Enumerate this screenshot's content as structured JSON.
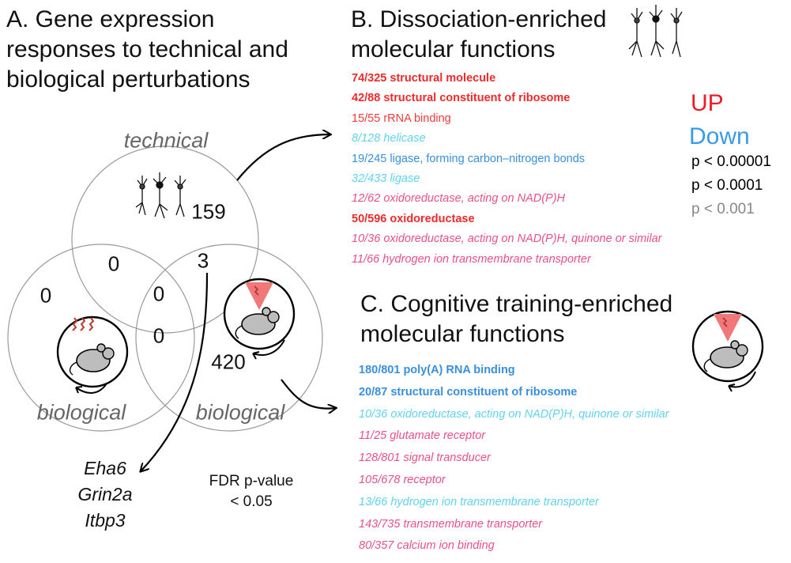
{
  "panel_a": {
    "title_lines": [
      "A. Gene expression",
      "responses to technical and",
      "biological perturbations"
    ],
    "circle_labels": {
      "technical": "technical",
      "biological_left": "biological",
      "biological_right": "biological"
    },
    "counts": {
      "technical_only": "159",
      "technical_bioleft": "0",
      "technical_bioright": "3",
      "bioleft_only": "0",
      "all_three": "0",
      "bioleft_bioright": "0",
      "bioright_only": "420"
    },
    "genes": [
      "Eha6",
      "Grin2a",
      "Itbp3"
    ],
    "fdr_note": [
      "FDR p-value",
      "< 0.05"
    ]
  },
  "panel_b": {
    "title_lines": [
      "B. Dissociation-enriched",
      "molecular functions"
    ],
    "terms": [
      {
        "text": "74/325 structural molecule",
        "dir": "up",
        "sig": "strong"
      },
      {
        "text": "42/88 structural constituent of ribosome",
        "dir": "up",
        "sig": "strong"
      },
      {
        "text": "15/55 rRNA binding",
        "dir": "up",
        "sig": "medium"
      },
      {
        "text": "8/128 helicase",
        "dir": "down",
        "sig": "weak"
      },
      {
        "text": "19/245 ligase, forming carbon–nitrogen bonds",
        "dir": "down",
        "sig": "medium"
      },
      {
        "text": "32/433 ligase",
        "dir": "down",
        "sig": "weak"
      },
      {
        "text": "12/62 oxidoreductase, acting on NAD(P)H",
        "dir": "up",
        "sig": "weak"
      },
      {
        "text": "50/596 oxidoreductase",
        "dir": "up",
        "sig": "strong"
      },
      {
        "text": "10/36 oxidoreductase, acting on NAD(P)H, quinone or similar",
        "dir": "up",
        "sig": "weak"
      },
      {
        "text": "11/66 hydrogen ion transmembrane transporter",
        "dir": "up",
        "sig": "weak"
      }
    ]
  },
  "legend": {
    "up": "UP",
    "down": "Down",
    "p_levels": [
      "p < 0.00001",
      "p < 0.0001",
      "p < 0.001"
    ]
  },
  "panel_c": {
    "title_lines": [
      "C. Cognitive training-enriched",
      "molecular functions"
    ],
    "terms": [
      {
        "text": "180/801 poly(A) RNA binding",
        "dir": "down",
        "sig": "strong"
      },
      {
        "text": "20/87 structural constituent of ribosome",
        "dir": "down",
        "sig": "strong"
      },
      {
        "text": "10/36 oxidoreductase, acting on NAD(P)H, quinone or similar",
        "dir": "down",
        "sig": "weak"
      },
      {
        "text": "11/25 glutamate receptor",
        "dir": "up",
        "sig": "weak"
      },
      {
        "text": "128/801 signal transducer",
        "dir": "up",
        "sig": "weak"
      },
      {
        "text": "105/678 receptor",
        "dir": "up",
        "sig": "weak"
      },
      {
        "text": "13/66 hydrogen ion transmembrane transporter",
        "dir": "down",
        "sig": "weak"
      },
      {
        "text": "143/735 transmembrane transporter",
        "dir": "up",
        "sig": "weak"
      },
      {
        "text": "80/357 calcium ion binding",
        "dir": "up",
        "sig": "weak"
      }
    ]
  },
  "colors": {
    "up_strong": "#ee2a2a",
    "up_medium": "#ef3b3b",
    "up_weak": "#e8508a",
    "down_strong": "#3a8fdd",
    "down_medium": "#3a8fdd",
    "down_weak": "#5fd3ee",
    "legend_up": "#ee1c24",
    "legend_down": "#3a9ae8",
    "legend_p1": "#000000",
    "legend_p2": "#000000",
    "legend_p3": "#888888",
    "circle_stroke": "#999999",
    "cone": "#f07878"
  }
}
